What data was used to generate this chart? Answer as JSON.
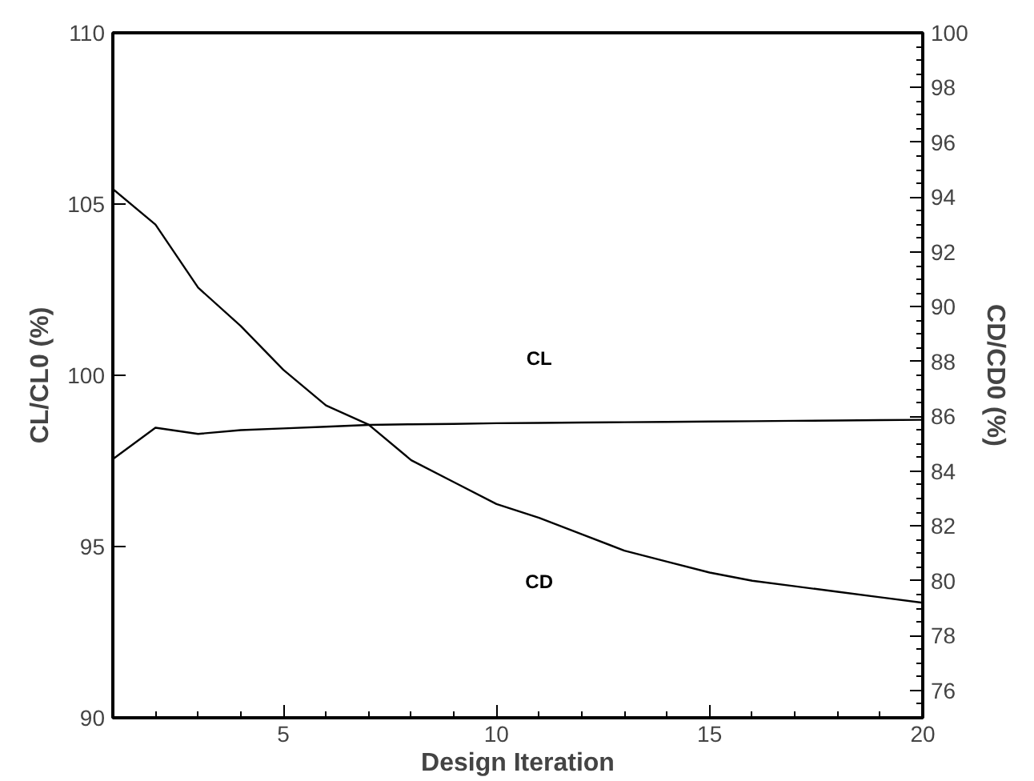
{
  "chart_data": {
    "type": "line",
    "xlabel": "Design Iteration",
    "ylabel": "CL/CL0 (%)",
    "y2label": "CD/CD0 (%)",
    "x": [
      1,
      2,
      3,
      4,
      5,
      6,
      7,
      8,
      9,
      10,
      11,
      12,
      13,
      14,
      15,
      16,
      17,
      18,
      19,
      20
    ],
    "series": [
      {
        "name": "CL",
        "color": "#000000",
        "values": [
          97.55,
          98.47,
          98.29,
          98.4,
          98.45,
          98.5,
          98.55,
          98.57,
          98.58,
          98.6,
          98.61,
          98.62,
          98.63,
          98.64,
          98.65,
          98.66,
          98.67,
          98.68,
          98.69,
          98.7
        ]
      },
      {
        "name": "CD",
        "color": "#000000",
        "axis": "y2",
        "values": [
          94.3,
          93.0,
          90.7,
          89.3,
          87.7,
          86.4,
          85.7,
          84.4,
          83.6,
          82.8,
          82.3,
          81.7,
          81.1,
          80.7,
          80.3,
          80.0,
          79.8,
          79.6,
          79.4,
          79.2
        ]
      }
    ],
    "xlim": [
      1,
      20
    ],
    "xticks": [
      5,
      10,
      15,
      20
    ],
    "ylim": [
      90,
      110
    ],
    "yticks": [
      90,
      95,
      100,
      105,
      110
    ],
    "y2lim": [
      75,
      100
    ],
    "y2ticks": [
      76,
      78,
      80,
      82,
      84,
      86,
      88,
      90,
      92,
      94,
      96,
      98,
      100
    ],
    "grid": false,
    "marker": "none",
    "line_style": "solid"
  }
}
